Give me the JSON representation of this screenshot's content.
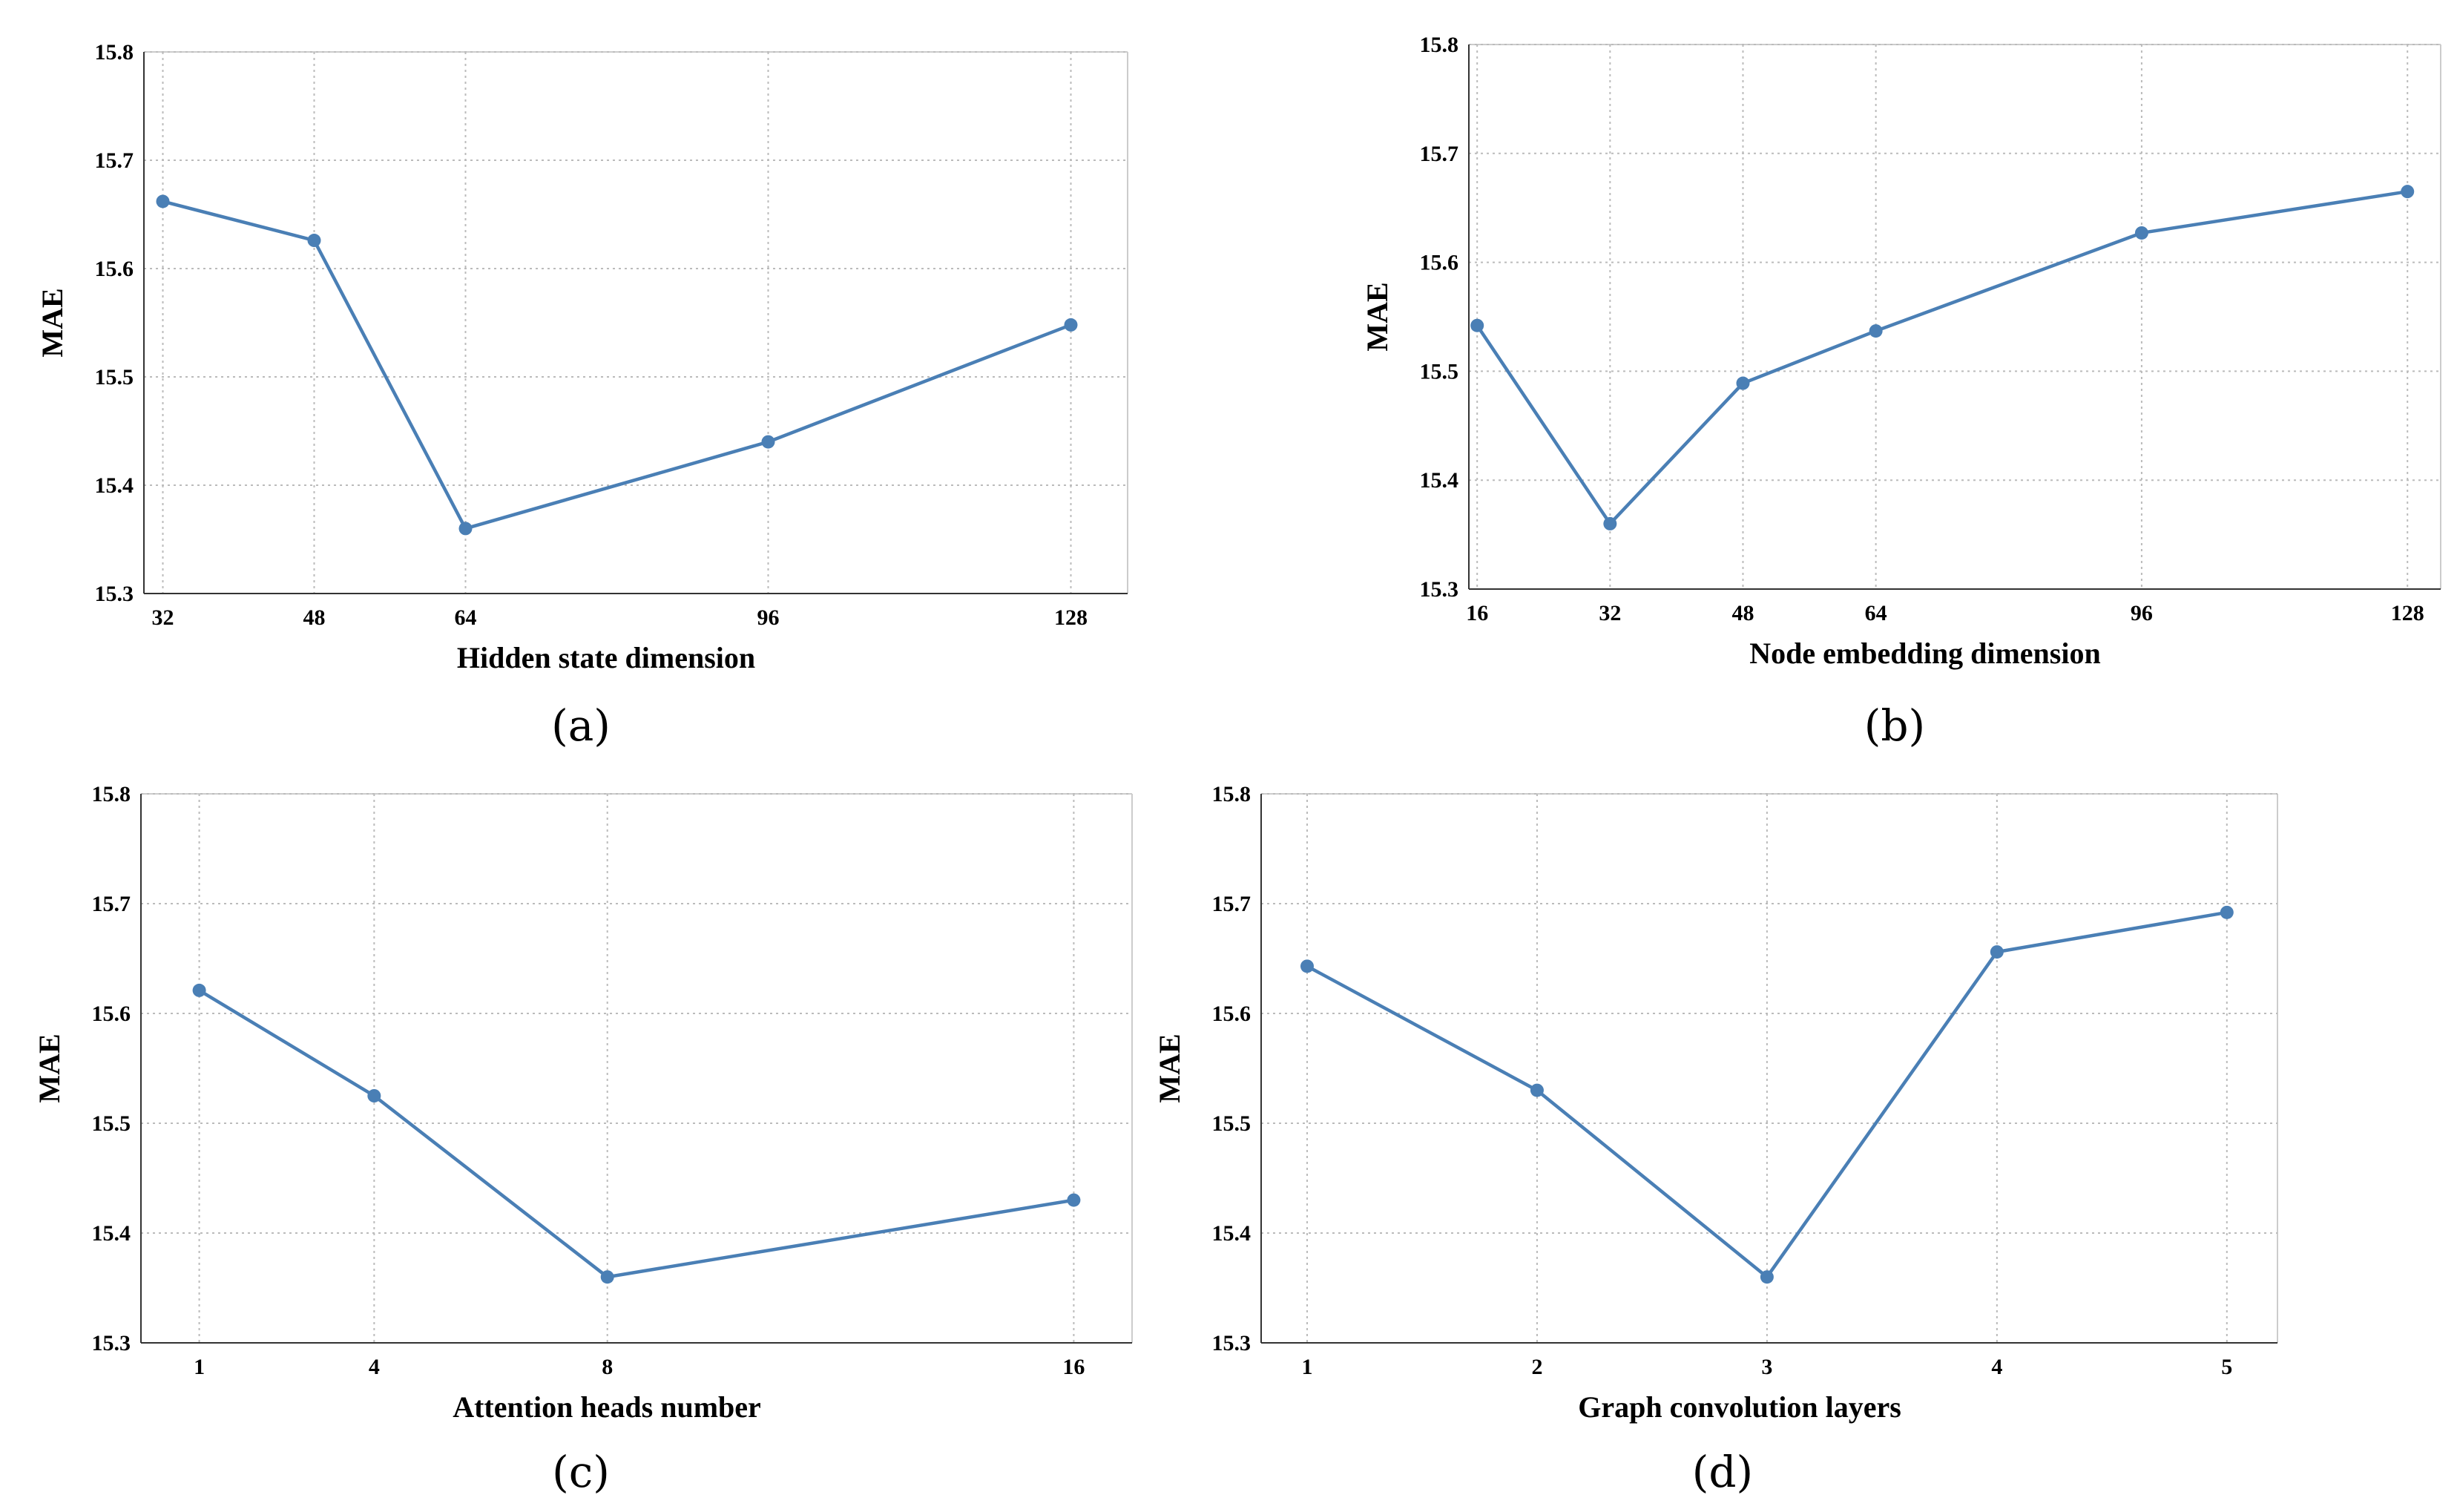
{
  "colors": {
    "series": "#4a7fb5"
  },
  "chart_data": [
    {
      "type": "line",
      "panel_label": "(a)",
      "xlabel": "Hidden state dimension",
      "ylabel": "MAE",
      "x": [
        32,
        48,
        64,
        96,
        128
      ],
      "y": [
        15.662,
        15.626,
        15.36,
        15.44,
        15.548
      ],
      "xlim": [
        30,
        134
      ],
      "ylim": [
        15.3,
        15.8
      ],
      "yticks": [
        15.3,
        15.4,
        15.5,
        15.6,
        15.7,
        15.8
      ],
      "ytick_labels": [
        "15.3",
        "15.4",
        "15.5",
        "15.6",
        "15.7",
        "15.8"
      ],
      "grid": true
    },
    {
      "type": "line",
      "panel_label": "(b)",
      "xlabel": "Node embedding dimension",
      "ylabel": "MAE",
      "x": [
        16,
        32,
        48,
        64,
        96,
        128
      ],
      "y": [
        15.542,
        15.36,
        15.489,
        15.537,
        15.627,
        15.665
      ],
      "xlim": [
        15,
        132
      ],
      "ylim": [
        15.3,
        15.8
      ],
      "yticks": [
        15.3,
        15.4,
        15.5,
        15.6,
        15.7,
        15.8
      ],
      "ytick_labels": [
        "15.3",
        "15.4",
        "15.5",
        "15.6",
        "15.7",
        "15.8"
      ],
      "grid": true
    },
    {
      "type": "line",
      "panel_label": "(c)",
      "xlabel": "Attention heads number",
      "ylabel": "MAE",
      "x": [
        1,
        4,
        8,
        16
      ],
      "y": [
        15.621,
        15.525,
        15.36,
        15.43
      ],
      "xlim": [
        0,
        17
      ],
      "ylim": [
        15.3,
        15.8
      ],
      "yticks": [
        15.3,
        15.4,
        15.5,
        15.6,
        15.7,
        15.8
      ],
      "ytick_labels": [
        "15.3",
        "15.4",
        "15.5",
        "15.6",
        "15.7",
        "15.8"
      ],
      "grid": true
    },
    {
      "type": "line",
      "panel_label": "(d)",
      "xlabel": "Graph convolution layers",
      "ylabel": "MAE",
      "x": [
        1,
        2,
        3,
        4,
        5
      ],
      "y": [
        15.643,
        15.53,
        15.36,
        15.656,
        15.692
      ],
      "xlim": [
        0.8,
        5.22
      ],
      "ylim": [
        15.3,
        15.8
      ],
      "yticks": [
        15.3,
        15.4,
        15.5,
        15.6,
        15.7,
        15.8
      ],
      "ytick_labels": [
        "15.3",
        "15.4",
        "15.5",
        "15.6",
        "15.7",
        "15.8"
      ],
      "grid": true
    }
  ]
}
